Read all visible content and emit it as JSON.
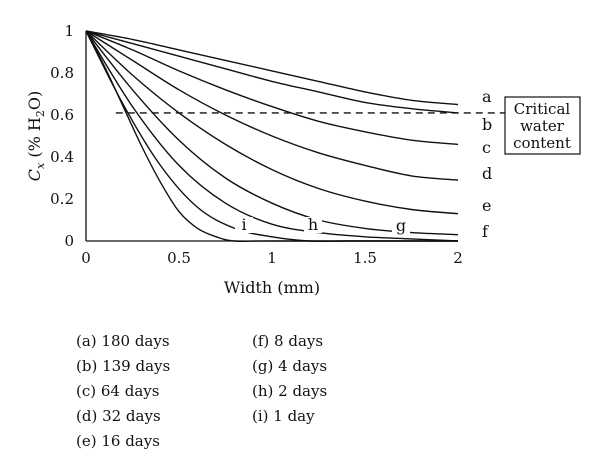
{
  "chart_data": {
    "type": "line",
    "title": "",
    "xlabel": "Width (mm)",
    "ylabel_parts": [
      "C",
      "x",
      " (% H",
      "2",
      "O)"
    ],
    "xlim": [
      0,
      2
    ],
    "ylim": [
      0,
      1
    ],
    "x_ticks": [
      "0",
      "0.5",
      "1",
      "1.5",
      "2"
    ],
    "y_ticks": [
      "0",
      "0.2",
      "0.4",
      "0.6",
      "0.8",
      "1"
    ],
    "grid": false,
    "threshold": {
      "y": 0.61,
      "label_lines": [
        "Critical",
        "water",
        "content"
      ]
    },
    "series": [
      {
        "name": "a",
        "x": [
          0,
          0.25,
          0.5,
          0.75,
          1.0,
          1.25,
          1.5,
          1.75,
          2.0
        ],
        "y": [
          1.0,
          0.96,
          0.91,
          0.86,
          0.81,
          0.76,
          0.71,
          0.67,
          0.65
        ]
      },
      {
        "name": "b",
        "x": [
          0,
          0.25,
          0.5,
          0.75,
          1.0,
          1.25,
          1.5,
          1.75,
          2.0
        ],
        "y": [
          1.0,
          0.94,
          0.88,
          0.82,
          0.76,
          0.71,
          0.66,
          0.63,
          0.61
        ]
      },
      {
        "name": "c",
        "x": [
          0,
          0.25,
          0.5,
          0.75,
          1.0,
          1.25,
          1.5,
          1.75,
          2.0
        ],
        "y": [
          1.0,
          0.91,
          0.81,
          0.72,
          0.64,
          0.57,
          0.52,
          0.48,
          0.46
        ]
      },
      {
        "name": "d",
        "x": [
          0,
          0.25,
          0.5,
          0.75,
          1.0,
          1.25,
          1.5,
          1.75,
          2.0
        ],
        "y": [
          1.0,
          0.86,
          0.72,
          0.6,
          0.5,
          0.42,
          0.36,
          0.31,
          0.29
        ]
      },
      {
        "name": "e",
        "x": [
          0,
          0.25,
          0.5,
          0.75,
          1.0,
          1.25,
          1.5,
          1.75,
          2.0
        ],
        "y": [
          1.0,
          0.79,
          0.61,
          0.46,
          0.34,
          0.25,
          0.19,
          0.15,
          0.13
        ]
      },
      {
        "name": "f",
        "x": [
          0,
          0.25,
          0.5,
          0.75,
          1.0,
          1.25,
          1.5,
          1.75,
          2.0
        ],
        "y": [
          1.0,
          0.72,
          0.48,
          0.3,
          0.18,
          0.1,
          0.06,
          0.04,
          0.03
        ]
      },
      {
        "name": "g",
        "x": [
          0,
          0.25,
          0.5,
          0.75,
          1.0,
          1.25,
          1.5,
          1.75,
          2.0
        ],
        "y": [
          1.0,
          0.64,
          0.36,
          0.18,
          0.08,
          0.04,
          0.02,
          0.01,
          0.0
        ]
      },
      {
        "name": "h",
        "x": [
          0,
          0.2,
          0.4,
          0.6,
          0.8,
          1.0,
          1.2,
          1.4,
          1.6,
          2.0
        ],
        "y": [
          1.0,
          0.65,
          0.36,
          0.16,
          0.06,
          0.02,
          0.0,
          0.0,
          0.0,
          0.0
        ]
      },
      {
        "name": "i",
        "x": [
          0,
          0.1,
          0.2,
          0.3,
          0.4,
          0.5,
          0.6,
          0.7,
          0.8,
          1.0,
          2.0
        ],
        "y": [
          1.0,
          0.83,
          0.64,
          0.45,
          0.28,
          0.14,
          0.06,
          0.02,
          0.0,
          0.0,
          0.0
        ]
      }
    ],
    "curve_labels": [
      "a",
      "b",
      "c",
      "d",
      "e",
      "f"
    ],
    "inline_labels": [
      "i",
      "h",
      "g"
    ]
  },
  "legend": {
    "col1": [
      "(a) 180 days",
      "(b) 139 days",
      "(c) 64 days",
      "(d) 32 days",
      "(e) 16 days"
    ],
    "col2": [
      "(f) 8 days",
      "(g) 4 days",
      "(h) 2 days",
      "(i) 1 day"
    ]
  }
}
